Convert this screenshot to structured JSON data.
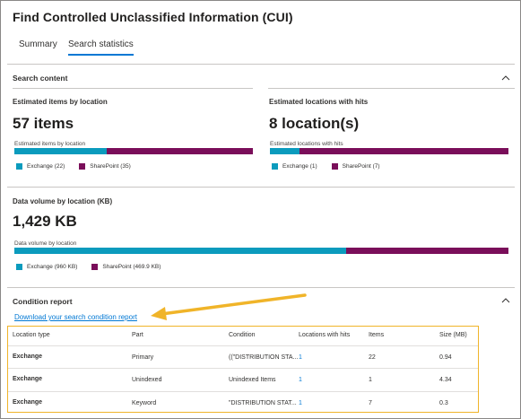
{
  "page": {
    "title": "Find Controlled Unclassified Information (CUI)"
  },
  "tabs": [
    {
      "label": "Summary"
    },
    {
      "label": "Search statistics"
    }
  ],
  "search_content": {
    "title": "Search content",
    "items_by_location": {
      "label": "Estimated items by location",
      "value": "57 items",
      "bar_label": "Estimated items by location",
      "legend": [
        {
          "name": "Exchange (22)",
          "color": "#0b9bbd"
        },
        {
          "name": "SharePoint (35)",
          "color": "#7a0e5a"
        }
      ],
      "fractions": [
        0.386,
        0.614
      ]
    },
    "locations_with_hits": {
      "label": "Estimated locations with hits",
      "value": "8 location(s)",
      "bar_label": "Estimated locations with hits",
      "legend": [
        {
          "name": "Exchange (1)",
          "color": "#0b9bbd"
        },
        {
          "name": "SharePoint (7)",
          "color": "#7a0e5a"
        }
      ],
      "fractions": [
        0.125,
        0.875
      ]
    },
    "data_volume": {
      "label": "Data volume by location (KB)",
      "value": "1,429 KB",
      "bar_label": "Data volume by location",
      "legend": [
        {
          "name": "Exchange (960 KB)",
          "color": "#0b9bbd"
        },
        {
          "name": "SharePoint (469.9 KB)",
          "color": "#7a0e5a"
        }
      ],
      "fractions": [
        0.672,
        0.328
      ]
    }
  },
  "condition_report": {
    "title": "Condition report",
    "download_link": "Download your search condition report",
    "columns": [
      "Location type",
      "Part",
      "Condition",
      "Locations with hits",
      "Items",
      "Size (MB)"
    ],
    "rows": [
      [
        "Exchange",
        "Primary",
        "((\"DISTRIBUTION STA...",
        "1",
        "22",
        "0.94"
      ],
      [
        "Exchange",
        "Unindexed",
        "Unindexed Items",
        "1",
        "1",
        "4.34"
      ],
      [
        "Exchange",
        "Keyword",
        "\"DISTRIBUTION STAT...",
        "1",
        "7",
        "0.3"
      ]
    ]
  },
  "icons": {
    "collapse": "chevron-up-icon",
    "annotation": "arrow-annotation"
  },
  "colors": {
    "accent": "#0078d4",
    "exchange": "#0b9bbd",
    "sharepoint": "#7a0e5a",
    "highlight": "#f0b429"
  }
}
